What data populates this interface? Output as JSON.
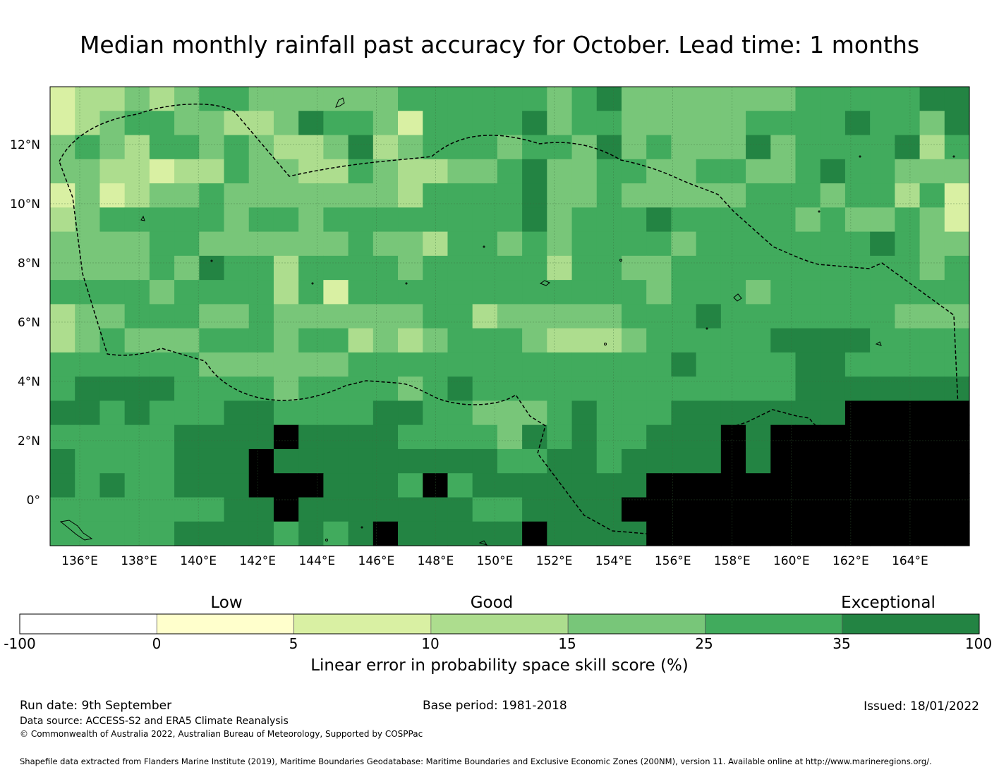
{
  "title": "Median monthly rainfall past accuracy for October. Lead time: 1 months",
  "map": {
    "lon_range": [
      135,
      166
    ],
    "lat_range": [
      -1.55,
      13.95
    ],
    "lon_ticks": [
      136,
      138,
      140,
      142,
      144,
      146,
      148,
      150,
      152,
      154,
      156,
      158,
      160,
      162,
      164
    ],
    "lon_tick_labels": [
      "136°E",
      "138°E",
      "140°E",
      "142°E",
      "144°E",
      "146°E",
      "148°E",
      "150°E",
      "152°E",
      "154°E",
      "156°E",
      "158°E",
      "160°E",
      "162°E",
      "164°E"
    ],
    "lat_ticks": [
      12,
      10,
      8,
      6,
      4,
      2,
      0
    ],
    "lat_tick_labels": [
      "12°N",
      "10°N",
      "8°N",
      "6°N",
      "4°N",
      "2°N",
      "0°"
    ],
    "grid": true,
    "cell_size_deg": 0.833,
    "grid_cols": 37,
    "grid_rows": 19,
    "category_grid": [
      "2334345544444455555545644444445555566",
      "2345544334655425555645544444555565546",
      "4543554543346345554554645444645555635",
      "4433233544335433445644554455445655444",
      "2423445444444435555644544444555455352",
      "3455555455455555555645556555554544542",
      "4444554444445443554545555455555556544",
      "4444546553555545555535544555555555545",
      "5555455553525555555555554555455555555",
      "3445554454444445534444455565555555444",
      "3454445554553434555433345555566665555",
      "5555554444445555555555555655556655555",
      "5666655554555545655555555555556666666",
      "6656555665555665544456555666666677777",
      "5555566667666655554656556667677777777",
      "6555566676666666665566566667677777777",
      "6565566677766657566666667777777777777",
      "5555555667666666655666677777777777777",
      "5555566665656766666766667777777777777"
    ]
  },
  "colorbar": {
    "categories": [
      "Low",
      "Good",
      "Exceptional"
    ],
    "ticks": [
      "-100",
      "0",
      "5",
      "10",
      "15",
      "25",
      "35",
      "100"
    ],
    "colors": [
      "#ffffff",
      "#ffffcc",
      "#d9f0a3",
      "#addd8e",
      "#78c679",
      "#41ab5d",
      "#238443"
    ],
    "label": "Linear error in probability space skill score (%)"
  },
  "footer": {
    "run_date": "Run date: 9th September",
    "base_period": "Base period: 1981-2018",
    "issued": "Issued: 18/01/2022",
    "data_source": "Data source: ACCESS-S2 and ERA5 Climate Reanalysis",
    "copyright": "© Commonwealth of Australia 2022, Australian Bureau of Meteorology, Supported by COSPPac",
    "shapefile": "Shapefile data extracted from Flanders Marine Institute (2019), Maritime Boundaries Geodatabase: Maritime Boundaries and Exclusive Economic Zones (200NM), version 11. Available online at http://www.marineregions.org/."
  }
}
